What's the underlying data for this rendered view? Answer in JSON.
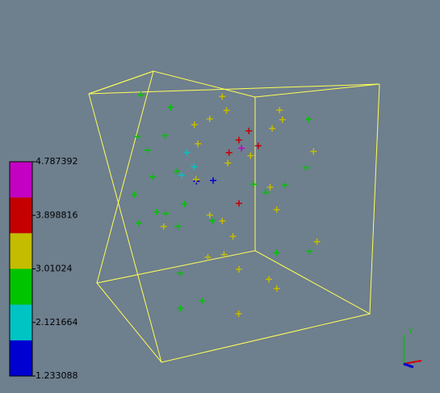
{
  "chart_data": {
    "type": "scatter3d",
    "colorbar": {
      "lim": [
        1.233088,
        4.787392
      ],
      "ticks": [
        1.233088,
        2.121664,
        3.01024,
        3.898816,
        4.787392
      ],
      "colors": [
        "#0000d0",
        "#00c4c4",
        "#00c400",
        "#c4bc00",
        "#c40000",
        "#c400c4"
      ]
    },
    "x": [
      0.3,
      0.35,
      0.4,
      0.33,
      0.42,
      0.6,
      0.65,
      0.62,
      0.7,
      0.58,
      0.6,
      0.1,
      0.15,
      0.2,
      0.25,
      0.12,
      0.18,
      0.28,
      0.45,
      0.5,
      0.55,
      0.48,
      0.52,
      0.38,
      0.68,
      0.75,
      0.8,
      0.85,
      0.9,
      0.72,
      0.78,
      0.88,
      0.95,
      0.65,
      0.55,
      0.45,
      0.35,
      0.25,
      0.15,
      0.05,
      0.22,
      0.32,
      0.62,
      0.82,
      0.92,
      0.7,
      0.4,
      0.5,
      0.58,
      0.85,
      0.1,
      0.3,
      0.75,
      0.66,
      0.46,
      0.26,
      0.86,
      0.96,
      0.16,
      0.56
    ],
    "y": [
      0.6,
      0.65,
      0.55,
      0.7,
      0.6,
      0.75,
      0.7,
      0.8,
      0.72,
      0.68,
      0.45,
      0.8,
      0.6,
      0.4,
      0.2,
      0.7,
      0.5,
      0.3,
      0.85,
      0.9,
      0.35,
      0.25,
      0.15,
      0.45,
      0.55,
      0.65,
      0.4,
      0.3,
      0.5,
      0.2,
      0.85,
      0.7,
      0.6,
      0.1,
      0.6,
      0.7,
      0.85,
      0.9,
      0.3,
      0.55,
      0.75,
      0.1,
      0.3,
      0.8,
      0.2,
      0.9,
      0.4,
      0.5,
      0.2,
      0.45,
      0.95,
      0.35,
      0.05,
      0.6,
      0.05,
      0.65,
      0.15,
      0.85,
      0.15,
      0.95
    ],
    "z": [
      0.5,
      0.4,
      0.6,
      0.5,
      0.3,
      0.5,
      0.6,
      0.4,
      0.5,
      0.6,
      0.5,
      0.3,
      0.5,
      0.7,
      0.4,
      0.6,
      0.2,
      0.8,
      0.5,
      0.3,
      0.6,
      0.4,
      0.7,
      0.2,
      0.3,
      0.7,
      0.5,
      0.2,
      0.6,
      0.8,
      0.4,
      0.3,
      0.5,
      0.6,
      0.1,
      0.8,
      0.2,
      0.5,
      0.9,
      0.4,
      0.7,
      0.3,
      0.9,
      0.6,
      0.4,
      0.2,
      0.8,
      0.9,
      0.1,
      0.7,
      0.5,
      0.6,
      0.4,
      0.8,
      0.2,
      0.3,
      0.6,
      0.5,
      0.1,
      0.7
    ],
    "values": [
      2.3,
      2.0,
      1.6,
      2.4,
      1.8,
      4.0,
      4.4,
      3.8,
      4.1,
      3.9,
      3.7,
      2.8,
      2.9,
      2.7,
      2.6,
      2.8,
      2.7,
      3.1,
      3.2,
      3.3,
      3.2,
      3.1,
      3.3,
      2.8,
      3.4,
      3.2,
      3.3,
      3.1,
      2.9,
      3.2,
      3.3,
      3.1,
      2.8,
      3.2,
      2.9,
      3.3,
      3.4,
      2.7,
      2.8,
      2.7,
      2.6,
      3.0,
      3.2,
      3.4,
      2.9,
      3.3,
      2.9,
      3.2,
      3.1,
      2.8,
      2.7,
      2.9,
      3.3,
      3.5,
      3.2,
      2.8,
      3.0,
      2.7,
      2.8,
      3.3
    ]
  },
  "orientation_axes": {
    "label": "Y"
  }
}
